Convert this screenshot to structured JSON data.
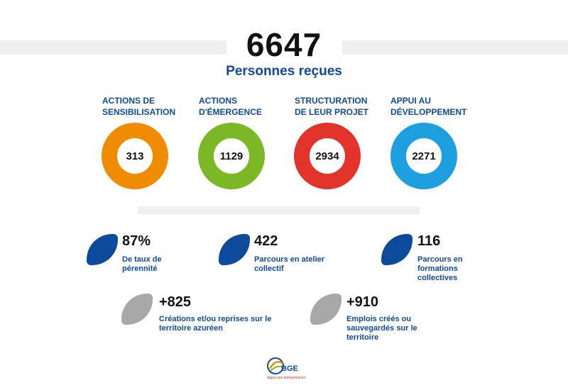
{
  "header": {
    "total": "6647",
    "subtitle": "Personnes reçues"
  },
  "categories": [
    {
      "label_line1": "ACTIONS DE",
      "label_line2": "SENSIBILISATION",
      "value": "313",
      "color": "#f08c00"
    },
    {
      "label_line1": "ACTIONS",
      "label_line2": "D'ÉMERGENCE",
      "value": "1129",
      "color": "#7cb826"
    },
    {
      "label_line1": "STRUCTURATION",
      "label_line2": "DE LEUR PROJET",
      "value": "2934",
      "color": "#e3342b"
    },
    {
      "label_line1": "APPUI AU",
      "label_line2": "DÉVELOPPEMENT",
      "value": "2271",
      "color": "#1ea0e0"
    }
  ],
  "stats": [
    {
      "value": "87%",
      "label_line1": "De taux de",
      "label_line2": "pérennité",
      "label_line3": ""
    },
    {
      "value": "422",
      "label_line1": "Parcours en atelier",
      "label_line2": "collectif",
      "label_line3": ""
    },
    {
      "value": "116",
      "label_line1": "Parcours en",
      "label_line2": "formations",
      "label_line3": "collectives"
    },
    {
      "value": "+825",
      "label_line1": "Créations et/ou reprises sur le",
      "label_line2": "territoire azuréen",
      "label_line3": ""
    },
    {
      "value": "+910",
      "label_line1": "Emplois créés ou",
      "label_line2": "sauvegardés sur le",
      "label_line3": "territoire"
    }
  ],
  "logo": {
    "name": "BGE",
    "tagline": "Appui aux entrepreneurs",
    "icon": "bge-logo-icon"
  }
}
